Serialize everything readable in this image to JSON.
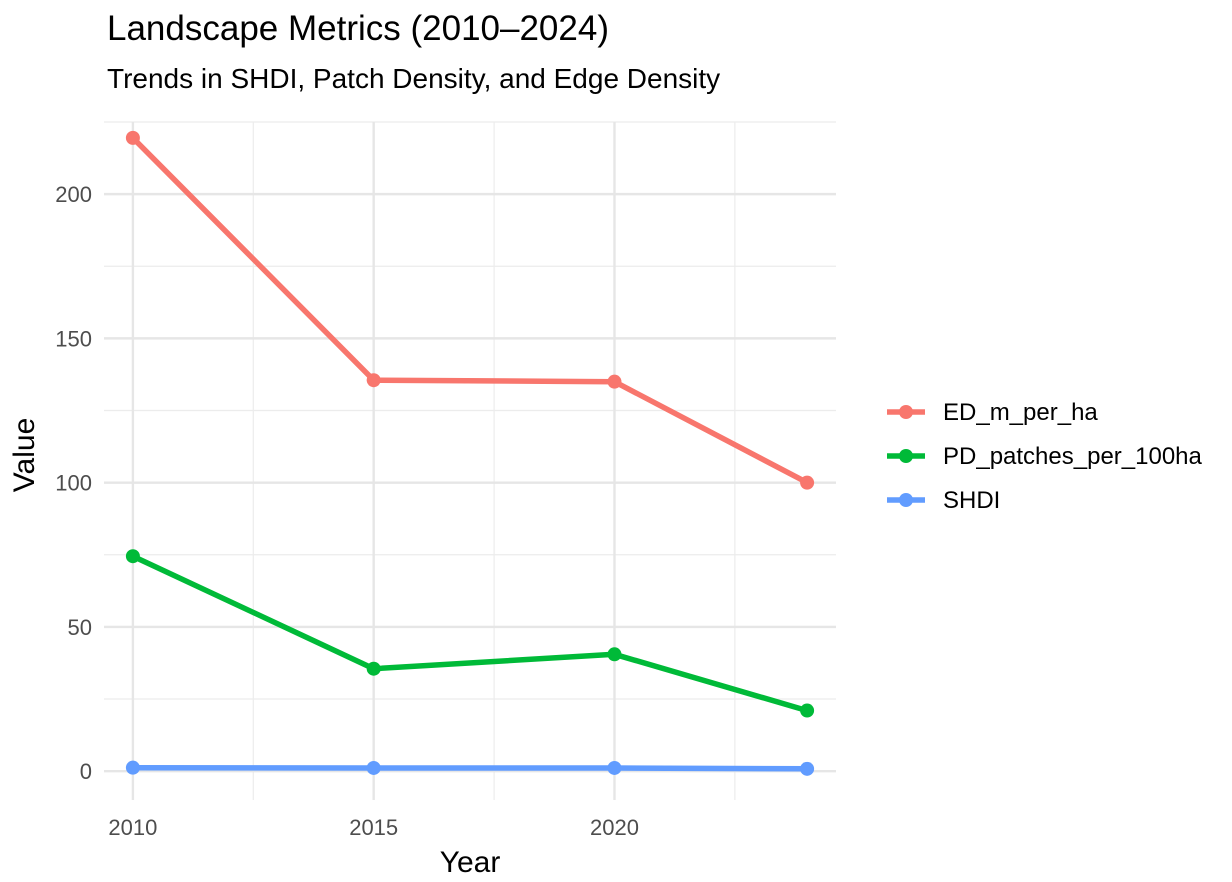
{
  "chart_data": {
    "type": "line",
    "title": "Landscape Metrics (2010–2024)",
    "subtitle": "Trends in SHDI, Patch Density, and Edge Density",
    "xlabel": "Year",
    "ylabel": "Value",
    "x": [
      2010,
      2015,
      2020,
      2024
    ],
    "xlim": [
      2009.4,
      2024.6
    ],
    "ylim": [
      -10,
      225
    ],
    "x_ticks": [
      2010,
      2015,
      2020
    ],
    "y_ticks": [
      0,
      50,
      100,
      150,
      200
    ],
    "grid": true,
    "legend_position": "right",
    "series": [
      {
        "name": "ED_m_per_ha",
        "color": "#F8766D",
        "values": [
          219.5,
          135.5,
          135,
          100
        ]
      },
      {
        "name": "PD_patches_per_100ha",
        "color": "#00BA38",
        "values": [
          74.5,
          35.5,
          40.5,
          21
        ]
      },
      {
        "name": "SHDI",
        "color": "#619CFF",
        "values": [
          1.2,
          1.1,
          1.1,
          0.8
        ]
      }
    ]
  }
}
